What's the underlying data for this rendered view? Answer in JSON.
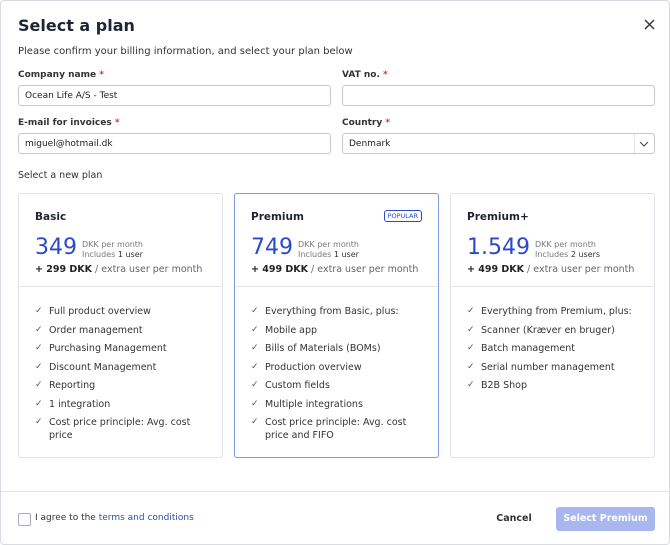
{
  "dialog": {
    "title": "Select a plan",
    "subtitle": "Please confirm your billing information, and select your plan below"
  },
  "form": {
    "required_mark": "*",
    "company_label": "Company name",
    "company_value": "Ocean Life A/S - Test",
    "vat_label": "VAT no.",
    "email_label": "E-mail for invoices",
    "email_value": "miguel@hotmail.dk",
    "country_label": "Country",
    "country_value": "Denmark"
  },
  "plans_label": "Select a new plan",
  "plans": [
    {
      "name": "Basic",
      "price": "349",
      "price_unit": "DKK per month",
      "includes": "Includes",
      "users": "1 user",
      "extra": "+ 299 DKK",
      "extra_suffix": "/ extra user per month",
      "features": [
        "Full product overview",
        "Order management",
        "Purchasing Management",
        "Discount Management",
        "Reporting",
        "1 integration",
        "Cost price principle: Avg. cost price"
      ]
    },
    {
      "name": "Premium",
      "badge": "POPULAR",
      "price": "749",
      "price_unit": "DKK per month",
      "includes": "Includes",
      "users": "1 user",
      "extra": "+ 499 DKK",
      "extra_suffix": "/ extra user per month",
      "features": [
        "Everything from Basic, plus:",
        "Mobile app",
        "Bills of Materials (BOMs)",
        "Production overview",
        "Custom fields",
        "Multiple integrations",
        "Cost price principle: Avg. cost price and FIFO"
      ]
    },
    {
      "name": "Premium+",
      "price": "1.549",
      "price_unit": "DKK per month",
      "includes": "Includes",
      "users": "2 users",
      "extra": "+ 499 DKK",
      "extra_suffix": "/ extra user per month",
      "features": [
        "Everything from Premium, plus:",
        "Scanner (Kræver en bruger)",
        "Batch management",
        "Serial number management",
        "B2B Shop"
      ]
    }
  ],
  "footer": {
    "agree": "I agree to the",
    "terms_link": "terms and conditions",
    "cancel": "Cancel",
    "submit": "Select Premium"
  }
}
